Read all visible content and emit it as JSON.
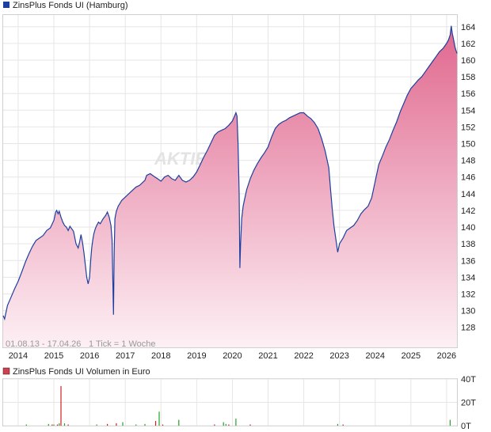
{
  "chart_data": [
    {
      "type": "area",
      "legend": "ZinsPlus Fonds UI (Hamburg)",
      "series_color": "#1f3f9f",
      "fill_top": "#e0678e",
      "fill_bottom": "#fdf0f5",
      "watermark": "AKTIEN",
      "footer_range": "01.08.13 - 17.04.26",
      "footer_tick": "1 Tick = 1 Woche",
      "x_ticks": [
        "2014",
        "2015",
        "2016",
        "2017",
        "2018",
        "2019",
        "2020",
        "2021",
        "2022",
        "2023",
        "2024",
        "2025",
        "2026"
      ],
      "y_ticks": [
        128,
        130,
        132,
        134,
        136,
        138,
        140,
        142,
        144,
        146,
        148,
        150,
        152,
        154,
        156,
        158,
        160,
        162,
        164
      ],
      "ylim": [
        125.6,
        165.4
      ],
      "xlim": [
        2013.58,
        2026.29
      ],
      "grid": true,
      "x": [
        2013.58,
        2013.62,
        2013.7,
        2013.8,
        2013.9,
        2014.0,
        2014.1,
        2014.2,
        2014.3,
        2014.4,
        2014.5,
        2014.6,
        2014.7,
        2014.8,
        2014.9,
        2015.0,
        2015.05,
        2015.08,
        2015.12,
        2015.15,
        2015.2,
        2015.25,
        2015.3,
        2015.35,
        2015.4,
        2015.45,
        2015.5,
        2015.55,
        2015.62,
        2015.68,
        2015.72,
        2015.76,
        2015.8,
        2015.84,
        2015.88,
        2015.92,
        2015.96,
        2016.0,
        2016.03,
        2016.06,
        2016.09,
        2016.12,
        2016.16,
        2016.2,
        2016.25,
        2016.3,
        2016.38,
        2016.45,
        2016.5,
        2016.55,
        2016.6,
        2016.63,
        2016.65,
        2016.67,
        2016.69,
        2016.71,
        2016.75,
        2016.8,
        2016.9,
        2017.0,
        2017.1,
        2017.2,
        2017.3,
        2017.4,
        2017.45,
        2017.5,
        2017.55,
        2017.6,
        2017.7,
        2017.8,
        2017.9,
        2018.0,
        2018.1,
        2018.2,
        2018.3,
        2018.4,
        2018.5,
        2018.6,
        2018.7,
        2018.8,
        2018.9,
        2019.0,
        2019.1,
        2019.2,
        2019.3,
        2019.4,
        2019.5,
        2019.6,
        2019.7,
        2019.8,
        2019.9,
        2020.0,
        2020.05,
        2020.1,
        2020.13,
        2020.16,
        2020.19,
        2020.21,
        2020.23,
        2020.26,
        2020.3,
        2020.35,
        2020.4,
        2020.5,
        2020.6,
        2020.7,
        2020.8,
        2020.9,
        2021.0,
        2021.1,
        2021.2,
        2021.3,
        2021.4,
        2021.5,
        2021.6,
        2021.7,
        2021.8,
        2021.9,
        2022.0,
        2022.1,
        2022.2,
        2022.3,
        2022.4,
        2022.5,
        2022.6,
        2022.7,
        2022.75,
        2022.8,
        2022.85,
        2022.9,
        2022.95,
        2023.0,
        2023.1,
        2023.2,
        2023.3,
        2023.4,
        2023.5,
        2023.6,
        2023.7,
        2023.8,
        2023.9,
        2024.0,
        2024.1,
        2024.2,
        2024.3,
        2024.4,
        2024.5,
        2024.6,
        2024.7,
        2024.8,
        2024.9,
        2025.0,
        2025.1,
        2025.2,
        2025.3,
        2025.4,
        2025.5,
        2025.6,
        2025.7,
        2025.8,
        2025.9,
        2026.0,
        2026.05,
        2026.1,
        2026.13,
        2026.16,
        2026.2,
        2026.24,
        2026.29
      ],
      "y": [
        129.4,
        129.0,
        130.6,
        131.6,
        132.6,
        133.5,
        134.6,
        135.8,
        136.8,
        137.7,
        138.4,
        138.7,
        139.0,
        139.6,
        139.9,
        140.8,
        141.8,
        142.0,
        141.6,
        141.9,
        141.2,
        140.6,
        140.2,
        140.0,
        139.6,
        140.1,
        139.8,
        139.5,
        138.0,
        137.5,
        138.2,
        139.1,
        138.2,
        137.0,
        135.5,
        134.0,
        133.2,
        134.0,
        136.0,
        137.5,
        138.5,
        139.2,
        139.8,
        140.2,
        140.6,
        140.4,
        141.0,
        141.4,
        141.8,
        141.2,
        140.2,
        138.5,
        134.0,
        129.5,
        137.0,
        141.0,
        141.9,
        142.5,
        143.2,
        143.6,
        144.0,
        144.4,
        144.8,
        145.0,
        145.2,
        145.4,
        145.6,
        146.2,
        146.4,
        146.1,
        145.8,
        145.5,
        146.0,
        146.2,
        145.8,
        145.6,
        146.2,
        145.6,
        145.4,
        145.6,
        146.0,
        146.6,
        147.5,
        148.4,
        149.2,
        150.1,
        151.0,
        151.4,
        151.6,
        151.8,
        152.2,
        152.7,
        153.2,
        153.7,
        153.3,
        150.0,
        144.0,
        135.1,
        138.0,
        141.0,
        142.5,
        143.5,
        144.5,
        145.8,
        146.8,
        147.6,
        148.3,
        148.9,
        149.6,
        150.8,
        151.8,
        152.3,
        152.6,
        152.8,
        153.1,
        153.3,
        153.5,
        153.7,
        153.7,
        153.3,
        153.0,
        152.5,
        151.8,
        150.6,
        149.1,
        147.1,
        144.5,
        142.0,
        140.0,
        138.5,
        137.0,
        138.0,
        138.7,
        139.6,
        139.9,
        140.2,
        140.8,
        141.6,
        142.1,
        142.5,
        143.5,
        145.5,
        147.5,
        148.5,
        149.6,
        150.5,
        151.6,
        152.6,
        153.8,
        154.8,
        155.8,
        156.6,
        157.1,
        157.6,
        158.0,
        158.6,
        159.2,
        159.8,
        160.4,
        161.0,
        161.4,
        162.0,
        162.4,
        163.0,
        164.1,
        163.2,
        162.4,
        161.5,
        160.8
      ]
    },
    {
      "type": "bar",
      "legend": "ZinsPlus Fonds UI Volumen in Euro",
      "y_ticks": [
        "0T",
        "20T",
        "40T"
      ],
      "ylim": [
        0,
        40
      ],
      "x_ticks": [
        "2014",
        "2015",
        "2016",
        "2017",
        "2018",
        "2019",
        "2020",
        "2021",
        "2022",
        "2023",
        "2024",
        "2025",
        "2026"
      ],
      "xlim": [
        2013.58,
        2026.29
      ],
      "up_color": "#2aa02a",
      "down_color": "#d02020",
      "x": [
        2014.23,
        2014.85,
        2014.95,
        2015.0,
        2015.1,
        2015.15,
        2015.2,
        2015.3,
        2015.4,
        2016.2,
        2016.5,
        2016.75,
        2016.93,
        2017.3,
        2017.55,
        2017.85,
        2017.95,
        2018.05,
        2018.5,
        2019.5,
        2019.75,
        2019.82,
        2019.9,
        2020.1,
        2020.5,
        2022.95,
        2023.1,
        2026.1
      ],
      "values": [
        1,
        1.5,
        1,
        1,
        1,
        2,
        34,
        2,
        1,
        1,
        1.5,
        2,
        3,
        1,
        1.5,
        4,
        12,
        1,
        5,
        1,
        3,
        1.5,
        1,
        6,
        1,
        1.5,
        1,
        5
      ],
      "up": [
        true,
        true,
        false,
        true,
        false,
        true,
        false,
        true,
        false,
        true,
        false,
        false,
        true,
        true,
        true,
        false,
        true,
        false,
        true,
        false,
        true,
        true,
        false,
        true,
        false,
        true,
        false,
        true
      ]
    }
  ]
}
